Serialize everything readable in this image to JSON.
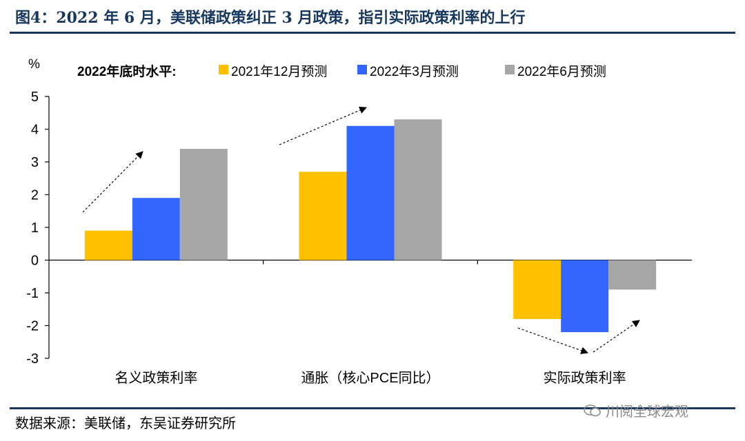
{
  "title": "图4：2022 年 6 月，美联储政策纠正 3 月政策，指引实际政策利率的上行",
  "source": "数据来源：美联储，东吴证券研究所",
  "watermark": "川阅全球宏观",
  "colors": {
    "rule": "#17375e"
  },
  "chart_data": {
    "type": "bar",
    "ylabel": "%",
    "legend_title": "2022年底时水平:",
    "legend_position": "top",
    "ylim": [
      -3,
      5
    ],
    "yticks": [
      "5",
      "4",
      "3",
      "2",
      "1",
      "0",
      "-1",
      "-2",
      "-3"
    ],
    "grid": false,
    "categories": [
      "名义政策利率",
      "通胀（核心PCE同比）",
      "实际政策利率"
    ],
    "series": [
      {
        "name": "2021年12月预测",
        "color": "#ffc000",
        "values": [
          0.9,
          2.7,
          -1.8
        ]
      },
      {
        "name": "2022年3月预测",
        "color": "#3366ff",
        "values": [
          1.9,
          4.1,
          -2.2
        ]
      },
      {
        "name": "2022年6月预测",
        "color": "#a6a6a6",
        "values": [
          3.4,
          4.3,
          -0.9
        ]
      }
    ]
  }
}
